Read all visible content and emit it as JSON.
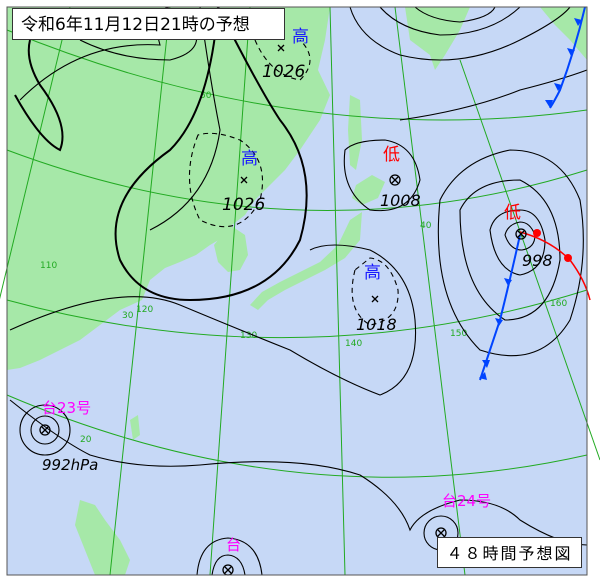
{
  "title": "令和6年11月12日21時の予想",
  "subtitle": "４８時間予想図",
  "colors": {
    "sea": "#c6d8f6",
    "land": "#a6e8a8",
    "grid": "#22aa22",
    "isobar": "#000000",
    "high": "#1a1aff",
    "low": "#ff0000",
    "typhoon": "#ff00ff",
    "cold_front": "#0044ff",
    "warm_front": "#ff0000"
  },
  "systems": [
    {
      "type": "high",
      "label": "高",
      "pressure": "1026",
      "place": "north"
    },
    {
      "type": "high",
      "label": "高",
      "pressure": "1026",
      "place": "korea-north"
    },
    {
      "type": "low",
      "label": "低",
      "pressure": "1008",
      "place": "hokkaido"
    },
    {
      "type": "high",
      "label": "高",
      "pressure": "1018",
      "place": "east-of-japan"
    },
    {
      "type": "low",
      "label": "低",
      "pressure": "998",
      "place": "northeast-pacific"
    },
    {
      "type": "typhoon",
      "label": "台23号",
      "pressure": "992hPa",
      "place": "west"
    },
    {
      "type": "typhoon",
      "label": "台24号",
      "place": "southeast"
    },
    {
      "type": "typhoon",
      "label": "台",
      "place": "south"
    }
  ],
  "grid_labels": [
    "50",
    "40",
    "30",
    "20",
    "110",
    "120",
    "130",
    "140",
    "150",
    "160"
  ]
}
